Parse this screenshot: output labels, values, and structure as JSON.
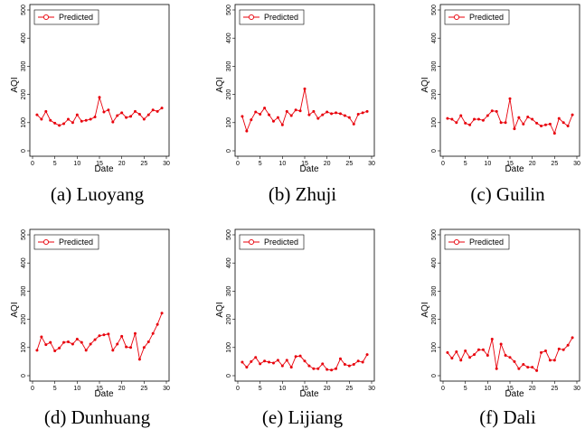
{
  "figure": {
    "panels": [
      {
        "caption": "(a) Luoyang"
      },
      {
        "caption": "(b) Zhuji"
      },
      {
        "caption": "(c) Guilin"
      },
      {
        "caption": "(d) Dunhuang"
      },
      {
        "caption": "(e) Lijiang"
      },
      {
        "caption": "(f) Dali"
      }
    ]
  },
  "colors": {
    "series": "#e8000b",
    "axis": "#000000"
  },
  "chart_data": [
    {
      "type": "line",
      "title": "",
      "xlabel": "Date",
      "ylabel": "AQI",
      "xlim": [
        0,
        30
      ],
      "ylim": [
        0,
        500
      ],
      "xticks": [
        0,
        5,
        10,
        15,
        20,
        25,
        30
      ],
      "yticks": [
        0,
        100,
        200,
        300,
        400,
        500
      ],
      "grid": false,
      "legend": "top-left",
      "x": [
        1,
        2,
        3,
        4,
        5,
        6,
        7,
        8,
        9,
        10,
        11,
        12,
        13,
        14,
        15,
        16,
        17,
        18,
        19,
        20,
        21,
        22,
        23,
        24,
        25,
        26,
        27,
        28,
        29
      ],
      "series": [
        {
          "name": "Predicted",
          "values": [
            128,
            112,
            140,
            108,
            98,
            90,
            96,
            112,
            100,
            128,
            105,
            108,
            112,
            120,
            190,
            138,
            145,
            102,
            125,
            135,
            118,
            122,
            140,
            130,
            112,
            128,
            145,
            140,
            152
          ]
        }
      ]
    },
    {
      "type": "line",
      "title": "",
      "xlabel": "Date",
      "ylabel": "AQI",
      "xlim": [
        0,
        30
      ],
      "ylim": [
        0,
        500
      ],
      "xticks": [
        0,
        5,
        10,
        15,
        20,
        25,
        30
      ],
      "yticks": [
        0,
        100,
        200,
        300,
        400,
        500
      ],
      "grid": false,
      "legend": "top-left",
      "x": [
        1,
        2,
        3,
        4,
        5,
        6,
        7,
        8,
        9,
        10,
        11,
        12,
        13,
        14,
        15,
        16,
        17,
        18,
        19,
        20,
        21,
        22,
        23,
        24,
        25,
        26,
        27,
        28,
        29
      ],
      "series": [
        {
          "name": "Predicted",
          "values": [
            122,
            70,
            110,
            138,
            130,
            152,
            128,
            105,
            118,
            92,
            140,
            125,
            145,
            142,
            220,
            128,
            140,
            115,
            128,
            138,
            132,
            135,
            132,
            125,
            118,
            95,
            130,
            135,
            140
          ]
        }
      ]
    },
    {
      "type": "line",
      "title": "",
      "xlabel": "Date",
      "ylabel": "AQI",
      "xlim": [
        0,
        30
      ],
      "ylim": [
        0,
        500
      ],
      "xticks": [
        0,
        5,
        10,
        15,
        20,
        25,
        30
      ],
      "yticks": [
        0,
        100,
        200,
        300,
        400,
        500
      ],
      "grid": false,
      "legend": "top-left",
      "x": [
        1,
        2,
        3,
        4,
        5,
        6,
        7,
        8,
        9,
        10,
        11,
        12,
        13,
        14,
        15,
        16,
        17,
        18,
        19,
        20,
        21,
        22,
        23,
        24,
        25,
        26,
        27,
        28,
        29
      ],
      "series": [
        {
          "name": "Predicted",
          "values": [
            115,
            112,
            100,
            125,
            98,
            92,
            112,
            112,
            108,
            125,
            142,
            140,
            100,
            100,
            185,
            78,
            118,
            95,
            120,
            112,
            98,
            88,
            92,
            95,
            62,
            115,
            100,
            88,
            128
          ]
        }
      ]
    },
    {
      "type": "line",
      "title": "",
      "xlabel": "Date",
      "ylabel": "AQI",
      "xlim": [
        0,
        30
      ],
      "ylim": [
        0,
        500
      ],
      "xticks": [
        0,
        5,
        10,
        15,
        20,
        25,
        30
      ],
      "yticks": [
        0,
        100,
        200,
        300,
        400,
        500
      ],
      "grid": false,
      "legend": "top-left",
      "x": [
        1,
        2,
        3,
        4,
        5,
        6,
        7,
        8,
        9,
        10,
        11,
        12,
        13,
        14,
        15,
        16,
        17,
        18,
        19,
        20,
        21,
        22,
        23,
        24,
        25,
        26,
        27,
        28,
        29
      ],
      "series": [
        {
          "name": "Predicted",
          "values": [
            90,
            138,
            110,
            118,
            88,
            98,
            118,
            120,
            112,
            130,
            118,
            90,
            112,
            128,
            142,
            145,
            148,
            90,
            112,
            140,
            102,
            100,
            150,
            58,
            100,
            120,
            150,
            182,
            222
          ]
        }
      ]
    },
    {
      "type": "line",
      "title": "",
      "xlabel": "Date",
      "ylabel": "AQI",
      "xlim": [
        0,
        30
      ],
      "ylim": [
        0,
        500
      ],
      "xticks": [
        0,
        5,
        10,
        15,
        20,
        25,
        30
      ],
      "yticks": [
        0,
        100,
        200,
        300,
        400,
        500
      ],
      "grid": false,
      "legend": "top-left",
      "x": [
        1,
        2,
        3,
        4,
        5,
        6,
        7,
        8,
        9,
        10,
        11,
        12,
        13,
        14,
        15,
        16,
        17,
        18,
        19,
        20,
        21,
        22,
        23,
        24,
        25,
        26,
        27,
        28,
        29
      ],
      "series": [
        {
          "name": "Predicted",
          "values": [
            48,
            30,
            50,
            65,
            42,
            52,
            48,
            45,
            55,
            35,
            55,
            30,
            68,
            70,
            52,
            35,
            25,
            25,
            42,
            22,
            20,
            25,
            60,
            40,
            35,
            40,
            52,
            48,
            75
          ]
        }
      ]
    },
    {
      "type": "line",
      "title": "",
      "xlabel": "Date",
      "ylabel": "AQI",
      "xlim": [
        0,
        30
      ],
      "ylim": [
        0,
        500
      ],
      "xticks": [
        0,
        5,
        10,
        15,
        20,
        25,
        30
      ],
      "yticks": [
        0,
        100,
        200,
        300,
        400,
        500
      ],
      "grid": false,
      "legend": "top-left",
      "x": [
        1,
        2,
        3,
        4,
        5,
        6,
        7,
        8,
        9,
        10,
        11,
        12,
        13,
        14,
        15,
        16,
        17,
        18,
        19,
        20,
        21,
        22,
        23,
        24,
        25,
        26,
        27,
        28,
        29
      ],
      "series": [
        {
          "name": "Predicted",
          "values": [
            82,
            62,
            85,
            55,
            88,
            65,
            75,
            92,
            92,
            72,
            130,
            25,
            112,
            72,
            65,
            50,
            25,
            40,
            30,
            30,
            18,
            82,
            88,
            55,
            55,
            95,
            92,
            108,
            135
          ]
        }
      ]
    }
  ]
}
